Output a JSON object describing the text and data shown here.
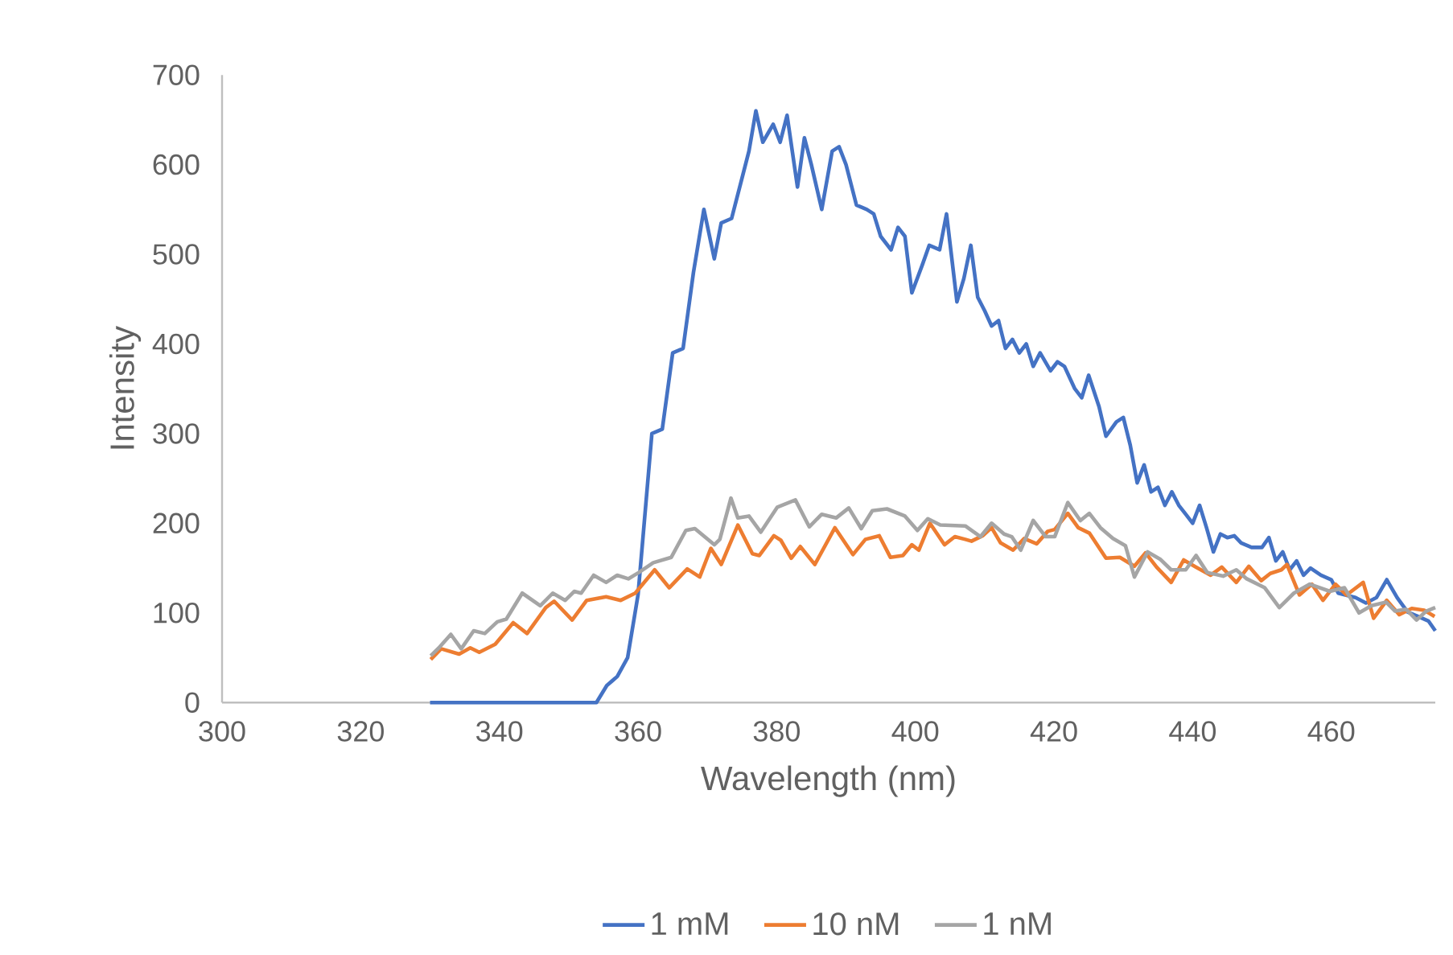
{
  "chart_data": {
    "type": "line",
    "xlabel": "Wavelength (nm)",
    "ylabel": "Intensity",
    "xlim": [
      300,
      475
    ],
    "ylim": [
      0,
      700
    ],
    "xticks": [
      300,
      320,
      340,
      360,
      380,
      400,
      420,
      440,
      460
    ],
    "yticks": [
      0,
      100,
      200,
      300,
      400,
      500,
      600,
      700
    ],
    "legend": "bottom",
    "series": [
      {
        "name": "1 mM",
        "color": "#4472c4",
        "x": [
          330,
          340,
          350,
          354,
          355.5,
          357,
          358.5,
          360,
          362,
          363.5,
          365,
          366.5,
          368,
          369.5,
          371,
          372,
          373.5,
          375,
          376,
          377,
          378,
          379.5,
          380.5,
          381.5,
          383,
          384,
          385,
          386.5,
          388,
          389,
          390,
          391.5,
          393,
          394,
          395,
          396.5,
          397.5,
          398.5,
          399.5,
          401,
          402,
          403.5,
          404.5,
          406,
          407,
          408,
          409,
          410,
          411,
          412,
          413,
          414,
          415,
          416,
          417,
          418,
          419.5,
          420.5,
          421.5,
          423,
          424,
          425,
          426.5,
          427.5,
          429,
          430,
          431,
          432,
          433,
          434,
          435,
          436,
          437,
          438,
          439,
          440,
          441,
          442,
          443,
          444,
          445,
          446,
          447,
          448.5,
          450,
          451,
          452,
          453,
          454,
          455,
          456,
          457,
          458.5,
          460,
          461,
          463.5,
          465,
          466.5,
          468,
          469.5,
          471,
          472.5,
          474,
          475
        ],
        "values": [
          0,
          0,
          0,
          0,
          19,
          29,
          50,
          120,
          300,
          305,
          390,
          395,
          480,
          550,
          495,
          535,
          540,
          585,
          615,
          660,
          625,
          645,
          625,
          655,
          575,
          630,
          600,
          550,
          615,
          620,
          600,
          555,
          550,
          545,
          520,
          505,
          530,
          520,
          457,
          488,
          510,
          505,
          545,
          447,
          473,
          510,
          452,
          437,
          420,
          426,
          395,
          405,
          390,
          400,
          375,
          390,
          370,
          380,
          375,
          350,
          340,
          365,
          330,
          297,
          313,
          318,
          287,
          245,
          265,
          235,
          240,
          220,
          235,
          220,
          210,
          200,
          220,
          195,
          168,
          188,
          184,
          186,
          178,
          173,
          173,
          184,
          158,
          168,
          148,
          158,
          142,
          150,
          142,
          137,
          122,
          117,
          111,
          117,
          137,
          117,
          101,
          96,
          91,
          80
        ]
      },
      {
        "name": "10 nM",
        "color": "#ed7d31",
        "x": [
          330.1,
          331.6,
          334.2,
          335.8,
          337.1,
          339.4,
          342,
          344,
          346.7,
          347.9,
          350.5,
          352.6,
          355.4,
          357.5,
          359.6,
          362.4,
          364.5,
          367.1,
          368.9,
          370.5,
          372,
          374.4,
          376.5,
          377.5,
          379.6,
          380.6,
          382.1,
          383.4,
          385.5,
          388.4,
          391,
          392.8,
          394.8,
          396.4,
          398.2,
          399.5,
          400.5,
          402.1,
          404.2,
          405.7,
          407.2,
          408.1,
          409.7,
          411,
          412.3,
          414.1,
          415.7,
          417.5,
          419.1,
          420.1,
          422,
          423.5,
          425.1,
          427.5,
          429.5,
          431.6,
          433.2,
          434.8,
          436.9,
          438.7,
          440.5,
          442.6,
          444.2,
          446.3,
          448.1,
          449.9,
          451.2,
          452.8,
          453.6,
          455.4,
          457.2,
          458.8,
          460.6,
          462.2,
          464.6,
          466.1,
          468,
          469.8,
          471.6,
          473.4,
          474.9
        ],
        "values": [
          48,
          60,
          54,
          61,
          56,
          65,
          89,
          77,
          106,
          113,
          92,
          114,
          118,
          114,
          122,
          148,
          128,
          149,
          140,
          172,
          154,
          198,
          166,
          164,
          186,
          181,
          161,
          174,
          154,
          195,
          165,
          182,
          186,
          162,
          164,
          176,
          170,
          200,
          176,
          185,
          182,
          180,
          186,
          195,
          178,
          170,
          183,
          177,
          191,
          193,
          211,
          195,
          189,
          161,
          162,
          152,
          167,
          151,
          134,
          159,
          151,
          142,
          151,
          134,
          152,
          136,
          144,
          148,
          154,
          120,
          132,
          114,
          132,
          120,
          134,
          94,
          114,
          98,
          105,
          103,
          96
        ]
      },
      {
        "name": "1 nM",
        "color": "#a5a5a5",
        "x": [
          330.1,
          331.4,
          333,
          334.5,
          336.3,
          337.9,
          339.7,
          341,
          343.3,
          345.9,
          347.7,
          349.5,
          350.8,
          351.8,
          353.6,
          355.4,
          357,
          358.6,
          360.1,
          362.2,
          364.8,
          366.9,
          368.2,
          371,
          371.8,
          373.4,
          374.4,
          376,
          377.7,
          380.1,
          382.7,
          384.7,
          386.5,
          388.6,
          390.4,
          392.2,
          393.8,
          395.9,
          398.5,
          400.3,
          401.8,
          403.6,
          407.2,
          409.4,
          411,
          412.8,
          413.9,
          415.2,
          417,
          418.8,
          420.1,
          422,
          423.8,
          425.1,
          426.7,
          428.5,
          430.3,
          431.6,
          433.5,
          435.3,
          436.9,
          439,
          440.5,
          442.1,
          444.4,
          446.3,
          447.8,
          450.4,
          452.5,
          454.6,
          456.9,
          459.8,
          461.9,
          464,
          465.8,
          467.9,
          469.2,
          470.8,
          472.3,
          473.7,
          475
        ],
        "values": [
          52,
          62,
          76,
          60,
          80,
          77,
          90,
          93,
          122,
          108,
          122,
          114,
          124,
          122,
          142,
          134,
          142,
          138,
          145,
          156,
          162,
          192,
          194,
          176,
          182,
          228,
          206,
          208,
          190,
          218,
          226,
          196,
          210,
          206,
          217,
          194,
          214,
          216,
          208,
          192,
          205,
          198,
          197,
          185,
          200,
          188,
          185,
          170,
          203,
          185,
          185,
          223,
          203,
          211,
          195,
          183,
          175,
          140,
          168,
          160,
          148,
          148,
          164,
          145,
          141,
          148,
          138,
          128,
          106,
          122,
          132,
          124,
          128,
          100,
          108,
          112,
          102,
          104,
          92,
          102,
          106
        ]
      }
    ]
  }
}
